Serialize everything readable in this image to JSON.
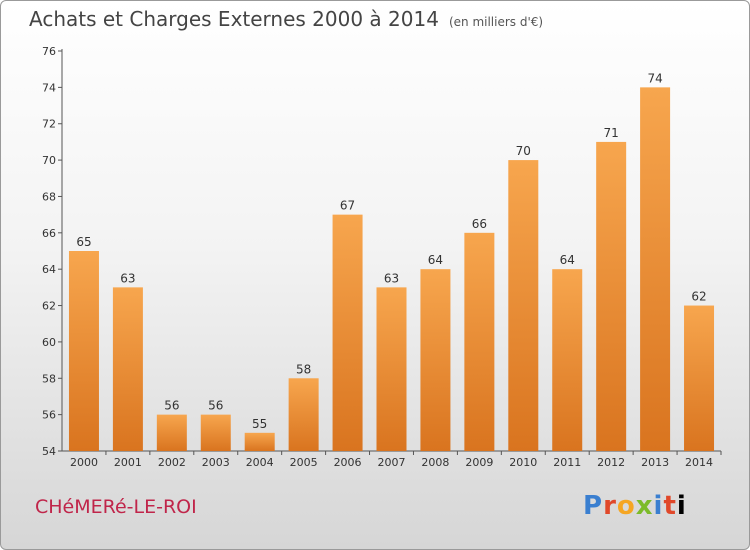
{
  "header": {
    "title": "Achats et Charges Externes 2000 à 2014",
    "unit": "(en milliers d'€)"
  },
  "footer": {
    "commune": "CHéMERé-LE-ROI",
    "logo_letters": [
      "P",
      "r",
      "o",
      "x",
      "i",
      "t",
      "i"
    ]
  },
  "colors": {
    "bar_top": "#f7a64e",
    "bar_bottom": "#d9741f",
    "commune": "#c0254a"
  },
  "chart_data": {
    "type": "bar",
    "title": "Achats et Charges Externes 2000 à 2014",
    "subtitle": "(en milliers d'€)",
    "xlabel": "",
    "ylabel": "",
    "categories": [
      "2000",
      "2001",
      "2002",
      "2003",
      "2004",
      "2005",
      "2006",
      "2007",
      "2008",
      "2009",
      "2010",
      "2011",
      "2012",
      "2013",
      "2014"
    ],
    "values": [
      65,
      63,
      56,
      56,
      55,
      58,
      67,
      63,
      64,
      66,
      70,
      64,
      71,
      74,
      62
    ],
    "ylim": [
      54,
      76
    ],
    "yticks": [
      54,
      56,
      58,
      60,
      62,
      64,
      66,
      68,
      70,
      72,
      74,
      76
    ],
    "grid": false,
    "legend": "none"
  }
}
